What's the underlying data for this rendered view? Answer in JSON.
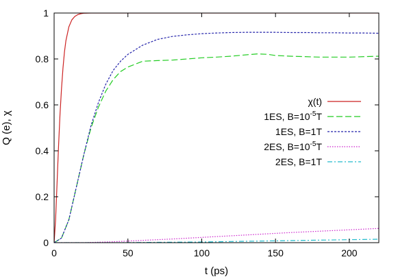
{
  "chart_data": {
    "type": "line",
    "xlabel": "t (ps)",
    "ylabel": "Q (e), χ",
    "xlim": [
      0,
      220
    ],
    "ylim": [
      0,
      1
    ],
    "x_ticks": [
      0,
      50,
      100,
      150,
      200
    ],
    "y_ticks": [
      0,
      0.2,
      0.4,
      0.6,
      0.8,
      1
    ],
    "x_tick_labels": [
      "0",
      "50",
      "100",
      "150",
      "200"
    ],
    "y_tick_labels": [
      "0",
      "0.2",
      "0.4",
      "0.6",
      "0.8",
      "1"
    ],
    "grid": false,
    "legend_position": "right",
    "series": [
      {
        "name": "χ(t)",
        "color": "#cc2222",
        "dash": "solid",
        "x": [
          0,
          1,
          2,
          3,
          4,
          5,
          6,
          7,
          8,
          10,
          12,
          14,
          16,
          18,
          20,
          25,
          30,
          220
        ],
        "y": [
          0,
          0.1,
          0.26,
          0.42,
          0.56,
          0.67,
          0.76,
          0.83,
          0.88,
          0.94,
          0.97,
          0.985,
          0.993,
          0.997,
          0.999,
          1.0,
          1.0,
          1.0
        ]
      },
      {
        "name": "1ES, B=10",
        "name_superscript": "-5",
        "name_suffix": "T",
        "color": "#22cc22",
        "dash": "long-dash",
        "x": [
          0,
          5,
          10,
          15,
          20,
          25,
          30,
          35,
          40,
          45,
          50,
          60,
          70,
          80,
          90,
          100,
          110,
          120,
          130,
          138,
          145,
          150,
          160,
          170,
          180,
          190,
          200,
          210,
          220
        ],
        "y": [
          0,
          0.02,
          0.1,
          0.24,
          0.38,
          0.5,
          0.59,
          0.66,
          0.71,
          0.745,
          0.765,
          0.79,
          0.793,
          0.795,
          0.8,
          0.805,
          0.808,
          0.812,
          0.818,
          0.822,
          0.82,
          0.815,
          0.812,
          0.81,
          0.808,
          0.808,
          0.808,
          0.81,
          0.812
        ]
      },
      {
        "name": "1ES, B=1T",
        "color": "#2222aa",
        "dash": "dashed",
        "x": [
          0,
          5,
          10,
          15,
          20,
          25,
          30,
          35,
          40,
          45,
          50,
          60,
          70,
          80,
          90,
          100,
          110,
          120,
          130,
          140,
          150,
          160,
          170,
          180,
          190,
          200,
          210,
          220
        ],
        "y": [
          0,
          0.02,
          0.1,
          0.24,
          0.38,
          0.51,
          0.61,
          0.69,
          0.75,
          0.79,
          0.82,
          0.86,
          0.885,
          0.898,
          0.905,
          0.91,
          0.913,
          0.915,
          0.916,
          0.916,
          0.916,
          0.915,
          0.915,
          0.914,
          0.914,
          0.913,
          0.913,
          0.912
        ]
      },
      {
        "name": "2ES, B=10",
        "name_superscript": "-5",
        "name_suffix": "T",
        "color": "#cc22cc",
        "dash": "dotted",
        "x": [
          0,
          20,
          40,
          60,
          80,
          100,
          120,
          140,
          160,
          180,
          200,
          220
        ],
        "y": [
          0,
          0.0,
          0.004,
          0.01,
          0.016,
          0.023,
          0.03,
          0.037,
          0.044,
          0.05,
          0.056,
          0.062
        ]
      },
      {
        "name": "2ES, B=1T",
        "color": "#22bbcc",
        "dash": "dash-dot",
        "x": [
          0,
          20,
          40,
          60,
          80,
          100,
          120,
          140,
          160,
          180,
          200,
          220
        ],
        "y": [
          0,
          0.0,
          0.0,
          0.001,
          0.002,
          0.003,
          0.005,
          0.007,
          0.009,
          0.011,
          0.013,
          0.015
        ]
      }
    ]
  }
}
